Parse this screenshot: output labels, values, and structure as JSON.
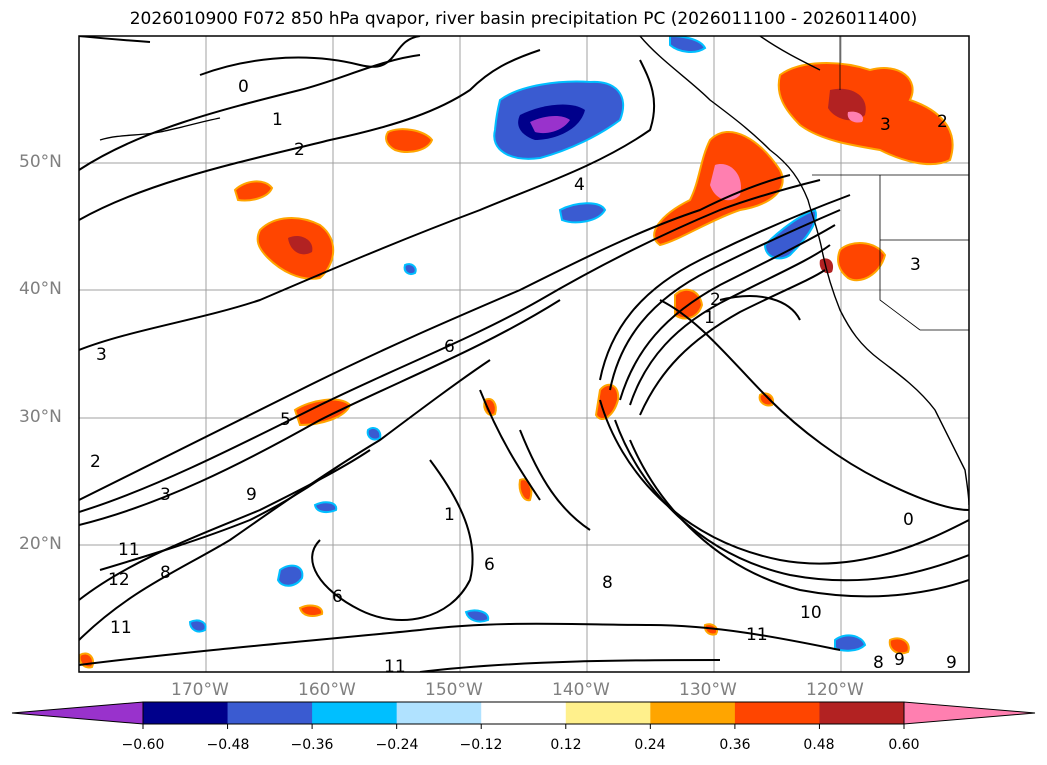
{
  "title": "2026010900 F072 850 hPa qvapor, river basin precipitation PC (2026011100 - 2026011400)",
  "axes": {
    "lat_labels": [
      "50°N",
      "40°N",
      "30°N",
      "20°N"
    ],
    "lon_labels": [
      "170°W",
      "160°W",
      "150°W",
      "140°W",
      "130°W",
      "120°W"
    ]
  },
  "colorbar": {
    "ticks": [
      "−0.60",
      "−0.48",
      "−0.36",
      "−0.24",
      "−0.12",
      "0.12",
      "0.24",
      "0.36",
      "0.48",
      "0.60"
    ],
    "colors": [
      "#9932cc",
      "#00008b",
      "#3a5bd1",
      "#00bfff",
      "#b0e2ff",
      "#ffffff",
      "#fff08c",
      "#ffa500",
      "#ff4500",
      "#b22222",
      "#ff7fb0"
    ]
  },
  "contour_labels": [
    "0",
    "1",
    "2",
    "4",
    "3",
    "5",
    "6",
    "9",
    "11",
    "12",
    "10",
    "8",
    "1",
    "2",
    "3",
    "0",
    "2",
    "3",
    "2",
    "9",
    "8",
    "11",
    "11",
    "1",
    "6",
    "6",
    "8",
    "11",
    "9",
    "3"
  ],
  "colors": {
    "contour": "#000000",
    "grid": "#a0a0a0",
    "coast": "#000000"
  }
}
